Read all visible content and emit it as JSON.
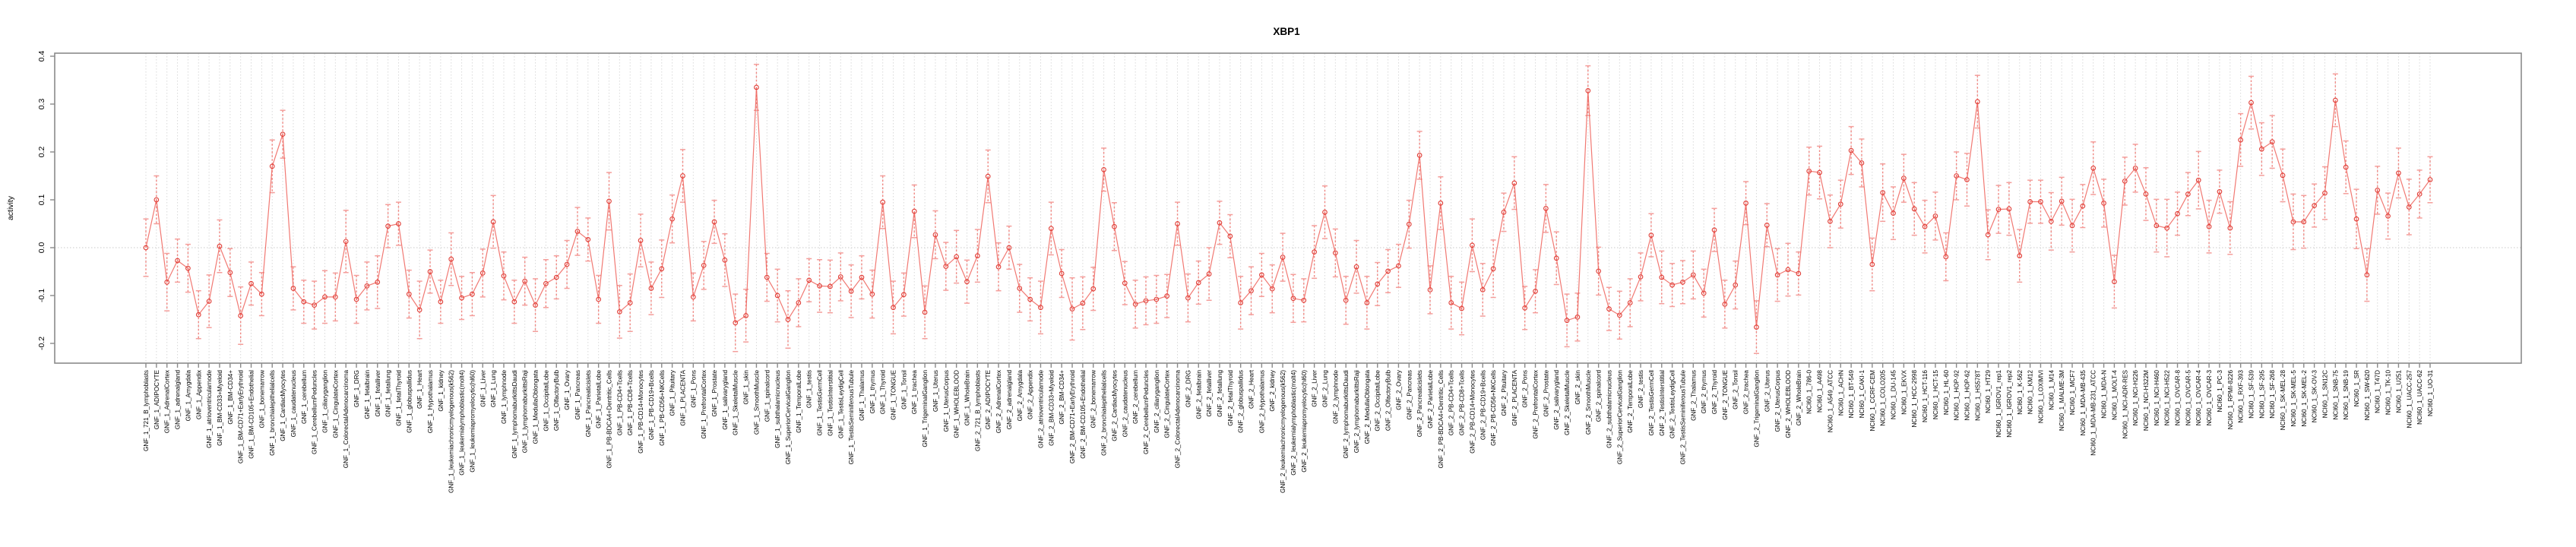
{
  "chart_data": {
    "type": "line",
    "title": "XBP1",
    "ylabel": "activity",
    "xlabel": "",
    "legend": "none",
    "grid": "dotted vertical gridline per category; dotted horizontal line at 0.0",
    "ylim": [
      -0.24,
      0.41
    ],
    "ytick_labels": [
      "0.4",
      "0.3",
      "0.2",
      "0.1",
      "0.0",
      "-0.1",
      "-0.2"
    ],
    "colors": {
      "series_line": "#ef615a",
      "marker_stroke": "#e03d36",
      "error_bar": "#f49e9b",
      "error_bar_line": "#f08883",
      "gridline": "#d9d9d9",
      "zero_line": "#c9c9c9",
      "axis_frame": "#8a8a8a"
    },
    "categories": [
      "GNF_1_721_B_lymphoblasts",
      "GNF_1_ADIPOCYTE",
      "GNF_1_AdrenalCortex",
      "GNF_1_adrenalgland",
      "GNF_1_Amygdala",
      "GNF_1_Appendix",
      "GNF_1_atrioventricularnode",
      "GNF_1_BM-CD33+Myeloid",
      "GNF_1_BM-CD34+",
      "GNF_1_BM-CD71+EarlyErythroid",
      "GNF_1_BM-CD105+Endothelial",
      "GNF_1_bonemarrow",
      "GNF_1_bronchialepithelialcells",
      "GNF_1_CardiacMyocytes",
      "GNF_1_caudatenucleus",
      "GNF_1_cerebellum",
      "GNF_1_CerebellumPeduncles",
      "GNF_1_ciliaryganglion",
      "GNF_1_CingulateCortex",
      "GNF_1_ColorectalAdenocarcinoma",
      "GNF_1_DRG",
      "GNF_1_fetalbrain",
      "GNF_1_fetalliver",
      "GNF_1_fetallung",
      "GNF_1_fetalThyroid",
      "GNF_1_globuspallidus",
      "GNF_1_Heart",
      "GNF_1_Hypothalamus",
      "GNF_1_kidney",
      "GNF_1_leukemiachronicmyelogenous(k562)",
      "GNF_1_leukemialymphoblastic(molt4)",
      "GNF_1_leukemiapromyelocytic(hl60)",
      "GNF_1_Liver",
      "GNF_1_Lung",
      "GNF_1_lymphnode",
      "GNF_1_lymphomaburkittsDaudi",
      "GNF_1_lymphomaburkittsRaji",
      "GNF_1_MedullaOblongata",
      "GNF_1_OccipitalLobe",
      "GNF_1_OlfactoryBulb",
      "GNF_1_Ovary",
      "GNF_1_Pancreas",
      "GNF_1_Pancreaticislets",
      "GNF_1_ParietalLobe",
      "GNF_1_PB-BDCA4+Dentritic_Cells",
      "GNF_1_PB-CD4+Tcells",
      "GNF_1_PB-CD8+Tcells",
      "GNF_1_PB-CD14+Monocytes",
      "GNF_1_PB-CD19+Bcells",
      "GNF_1_PB-CD56+NKCells",
      "GNF_1_Pituitary",
      "GNF_1_PLACENTA",
      "GNF_1_Pons",
      "GNF_1_PrefrontalCortex",
      "GNF_1_Prostate",
      "GNF_1_salivarygland",
      "GNF_1_SkeletalMuscle",
      "GNF_1_skin",
      "GNF_1_SmoothMuscle",
      "GNF_1_spinalcord",
      "GNF_1_subthalamicnucleus",
      "GNF_1_SuperiorCervicalGanglion",
      "GNF_1_TemporalLobe",
      "GNF_1_testis",
      "GNF_1_TestisGermCell",
      "GNF_1_TestisInterstitial",
      "GNF_1_TestisLeydigCell",
      "GNF_1_TestisSeminiferousTubule",
      "GNF_1_Thalamus",
      "GNF_1_thymus",
      "GNF_1_Thyroid",
      "GNF_1_TONGUE",
      "GNF_1_Tonsil",
      "GNF_1_trachea",
      "GNF_1_TrigeminalGanglion",
      "GNF_1_Uterus",
      "GNF_1_UterusCorpus",
      "GNF_1_WHOLEBLOOD",
      "GNF_1_WholeBrain",
      "GNF_2_721_B_lymphoblasts",
      "GNF_2_ADIPOCYTE",
      "GNF_2_AdrenalCortex",
      "GNF_2_adrenalgland",
      "GNF_2_Amygdala",
      "GNF_2_Appendix",
      "GNF_2_atrioventricularnode",
      "GNF_2_BM-CD33+Myeloid",
      "GNF_2_BM-CD34+",
      "GNF_2_BM-CD71+EarlyErythroid",
      "GNF_2_BM-CD105+Endothelial",
      "GNF_2_bonemarrow",
      "GNF_2_bronchialepithelialcells",
      "GNF_2_CardiacMyocytes",
      "GNF_2_caudatenucleus",
      "GNF_2_cerebellum",
      "GNF_2_CerebellumPeduncles",
      "GNF_2_ciliaryganglion",
      "GNF_2_CingulateCortex",
      "GNF_2_ColorectalAdenocarcinoma",
      "GNF_2_DRG",
      "GNF_2_fetalbrain",
      "GNF_2_fetalliver",
      "GNF_2_fetallung",
      "GNF_2_fetalThyroid",
      "GNF_2_globuspallidus",
      "GNF_2_Heart",
      "GNF_2_Hypothalamus",
      "GNF_2_kidney",
      "GNF_2_leukemiachronicmyelogenous(k562)",
      "GNF_2_leukemialymphoblastic(molt4)",
      "GNF_2_leukemiapromyelocytic(hl60)",
      "GNF_2_Liver",
      "GNF_2_Lung",
      "GNF_2_lymphnode",
      "GNF_2_lymphomaburkittsDaudi",
      "GNF_2_lymphomaburkittsRaji",
      "GNF_2_MedullaOblongata",
      "GNF_2_OccipitalLobe",
      "GNF_2_OlfactoryBulb",
      "GNF_2_Ovary",
      "GNF_2_Pancreas",
      "GNF_2_Pancreaticislets",
      "GNF_2_ParietalLobe",
      "GNF_2_PB-BDCA4+Dentritic_Cells",
      "GNF_2_PB-CD4+Tcells",
      "GNF_2_PB-CD8+Tcells",
      "GNF_2_PB-CD14+Monocytes",
      "GNF_2_PB-CD19+Bcells",
      "GNF_2_PB-CD56+NKCells",
      "GNF_2_Pituitary",
      "GNF_2_PLACENTA",
      "GNF_2_Pons",
      "GNF_2_PrefrontalCortex",
      "GNF_2_Prostate",
      "GNF_2_salivarygland",
      "GNF_2_SkeletalMuscle",
      "GNF_2_skin",
      "GNF_2_SmoothMuscle",
      "GNF_2_spinalcord",
      "GNF_2_subthalamicnucleus",
      "GNF_2_SuperiorCervicalGanglion",
      "GNF_2_TemporalLobe",
      "GNF_2_testis",
      "GNF_2_TestisGermCell",
      "GNF_2_TestisInterstitial",
      "GNF_2_TestisLeydigCell",
      "GNF_2_TestisSeminiferousTubule",
      "GNF_2_Thalamus",
      "GNF_2_thymus",
      "GNF_2_Thyroid",
      "GNF_2_TONGUE",
      "GNF_2_Tonsil",
      "GNF_2_trachea",
      "GNF_2_TrigeminalGanglion",
      "GNF_2_Uterus",
      "GNF_2_UterusCorpus",
      "GNF_2_WHOLEBLOOD",
      "GNF_2_WholeBrain",
      "NCI60_1_786-0",
      "NCI60_1_A498",
      "NCI60_1_A549_ATCC",
      "NCI60_1_ACHN",
      "NCI60_1_BT-549",
      "NCI60_1_CAKI-1",
      "NCI60_1_CCRF-CEM",
      "NCI60_1_COLO205",
      "NCI60_1_DU-145",
      "NCI60_1_EKVX",
      "NCI60_1_HCC-2998",
      "NCI60_1_HCT-116",
      "NCI60_1_HCT-15",
      "NCI60_1_HL-60",
      "NCI60_1_HOP-92",
      "NCI60_1_HOP-62",
      "NCI60_1_HS578T",
      "NCI60_1_HT29",
      "NCI60_1_IGROV1_rep1",
      "NCI60_1_IGROV1_rep2",
      "NCI60_1_K-562",
      "NCI60_1_KM12",
      "NCI60_1_LOXIMVI",
      "NCI60_1_M14",
      "NCI60_1_MALME-3M",
      "NCI60_1_MCF7",
      "NCI60_1_MDA-MB-435",
      "NCI60_1_MDA-MB-231_ATCC",
      "NCI60_1_MDA-N",
      "NCI60_1_MOLT-4",
      "NCI60_1_NCI-ADR-RES",
      "NCI60_1_NCI-H226",
      "NCI60_1_NCI-H322M",
      "NCI60_1_NCI-H460",
      "NCI60_1_NCI-H522",
      "NCI60_1_OVCAR-8",
      "NCI60_1_OVCAR-5",
      "NCI60_1_OVCAR-4",
      "NCI60_1_OVCAR-3",
      "NCI60_1_PC-3",
      "NCI60_1_RPMI-8226",
      "NCI60_1_RXF-393",
      "NCI60_1_SF-539",
      "NCI60_1_SF-295",
      "NCI60_1_SF-268",
      "NCI60_1_SK-MEL-28",
      "NCI60_1_SK-MEL-5",
      "NCI60_1_SK-MEL-2",
      "NCI60_1_SK-OV-3",
      "NCI60_1_SN12C",
      "NCI60_1_SNB-75",
      "NCI60_1_SNB-19",
      "NCI60_1_SR",
      "NCI60_1_SW-620",
      "NCI60_1_T47D",
      "NCI60_1_TK-10",
      "NCI60_1_U251",
      "NCI60_1_UACC-257",
      "NCI60_1_UACC-62",
      "NCI60_1_UO-31"
    ],
    "series": [
      {
        "name": "activity",
        "values": [
          0.0,
          0.1,
          -0.072,
          -0.027,
          -0.043,
          -0.14,
          -0.112,
          0.003,
          -0.052,
          -0.142,
          -0.075,
          -0.097,
          0.17,
          0.237,
          -0.085,
          -0.113,
          -0.12,
          -0.103,
          -0.103,
          0.013,
          -0.108,
          -0.08,
          -0.072,
          0.045,
          0.05,
          -0.097,
          -0.13,
          -0.05,
          -0.113,
          -0.024,
          -0.105,
          -0.097,
          -0.053,
          0.054,
          -0.059,
          -0.113,
          -0.07,
          -0.12,
          -0.075,
          -0.062,
          -0.035,
          0.034,
          0.017,
          -0.108,
          0.097,
          -0.134,
          -0.115,
          0.015,
          -0.085,
          -0.044,
          0.06,
          0.15,
          -0.103,
          -0.037,
          0.054,
          -0.026,
          -0.157,
          -0.142,
          0.335,
          -0.062,
          -0.1,
          -0.15,
          -0.115,
          -0.068,
          -0.08,
          -0.081,
          -0.061,
          -0.091,
          -0.062,
          -0.097,
          0.095,
          -0.125,
          -0.098,
          0.076,
          -0.135,
          0.027,
          -0.039,
          -0.019,
          -0.071,
          -0.017,
          0.149,
          -0.04,
          0.0,
          -0.085,
          -0.108,
          -0.125,
          0.04,
          -0.054,
          -0.128,
          -0.116,
          -0.086,
          0.163,
          0.044,
          -0.074,
          -0.118,
          -0.111,
          -0.108,
          -0.101,
          0.05,
          -0.105,
          -0.073,
          -0.055,
          0.052,
          0.024,
          -0.115,
          -0.09,
          -0.057,
          -0.086,
          -0.02,
          -0.106,
          -0.11,
          -0.009,
          0.074,
          -0.011,
          -0.11,
          -0.04,
          -0.115,
          -0.076,
          -0.049,
          -0.038,
          0.049,
          0.193,
          -0.088,
          0.093,
          -0.115,
          -0.127,
          0.005,
          -0.088,
          -0.044,
          0.074,
          0.135,
          -0.126,
          -0.091,
          0.082,
          -0.022,
          -0.152,
          -0.145,
          0.328,
          -0.049,
          -0.128,
          -0.141,
          -0.115,
          -0.061,
          0.026,
          -0.062,
          -0.078,
          -0.072,
          -0.057,
          -0.095,
          0.037,
          -0.118,
          -0.078,
          0.093,
          -0.166,
          0.047,
          -0.057,
          -0.046,
          -0.054,
          0.16,
          0.157,
          0.055,
          0.091,
          0.203,
          0.177,
          -0.035,
          0.115,
          0.072,
          0.145,
          0.081,
          0.044,
          0.066,
          -0.019,
          0.15,
          0.142,
          0.305,
          0.027,
          0.08,
          0.081,
          -0.017,
          0.096,
          0.096,
          0.055,
          0.097,
          0.046,
          0.087,
          0.166,
          0.093,
          -0.071,
          0.139,
          0.166,
          0.112,
          0.046,
          0.041,
          0.071,
          0.112,
          0.141,
          0.044,
          0.117,
          0.041,
          0.225,
          0.303,
          0.206,
          0.221,
          0.151,
          0.054,
          0.054,
          0.088,
          0.114,
          0.308,
          0.168,
          0.06,
          -0.057,
          0.12,
          0.066,
          0.156,
          0.085,
          0.112,
          0.142
        ],
        "errors": [
          0.06,
          0.05,
          0.06,
          0.045,
          0.05,
          0.05,
          0.055,
          0.055,
          0.05,
          0.06,
          0.045,
          0.045,
          0.055,
          0.05,
          0.045,
          0.045,
          0.05,
          0.055,
          0.05,
          0.065,
          0.05,
          0.05,
          0.055,
          0.045,
          0.045,
          0.05,
          0.06,
          0.045,
          0.045,
          0.055,
          0.045,
          0.045,
          0.05,
          0.055,
          0.05,
          0.045,
          0.05,
          0.055,
          0.05,
          0.045,
          0.05,
          0.05,
          0.045,
          0.05,
          0.06,
          0.055,
          0.06,
          0.055,
          0.055,
          0.06,
          0.05,
          0.055,
          0.05,
          0.05,
          0.045,
          0.055,
          0.06,
          0.055,
          0.048,
          0.05,
          0.055,
          0.06,
          0.05,
          0.045,
          0.055,
          0.055,
          0.05,
          0.055,
          0.045,
          0.05,
          0.055,
          0.055,
          0.045,
          0.055,
          0.055,
          0.05,
          0.05,
          0.055,
          0.045,
          0.055,
          0.055,
          0.05,
          0.045,
          0.05,
          0.045,
          0.055,
          0.055,
          0.05,
          0.065,
          0.055,
          0.045,
          0.045,
          0.05,
          0.045,
          0.05,
          0.05,
          0.05,
          0.045,
          0.045,
          0.05,
          0.045,
          0.055,
          0.045,
          0.045,
          0.055,
          0.05,
          0.045,
          0.05,
          0.05,
          0.05,
          0.045,
          0.055,
          0.055,
          0.05,
          0.05,
          0.055,
          0.055,
          0.045,
          0.045,
          0.045,
          0.05,
          0.05,
          0.05,
          0.055,
          0.055,
          0.055,
          0.055,
          0.055,
          0.06,
          0.04,
          0.055,
          0.045,
          0.045,
          0.05,
          0.055,
          0.055,
          0.05,
          0.052,
          0.05,
          0.045,
          0.05,
          0.05,
          0.05,
          0.045,
          0.055,
          0.045,
          0.045,
          0.05,
          0.05,
          0.045,
          0.05,
          0.05,
          0.045,
          0.055,
          0.045,
          0.055,
          0.055,
          0.045,
          0.05,
          0.055,
          0.055,
          0.05,
          0.05,
          0.05,
          0.055,
          0.06,
          0.055,
          0.05,
          0.055,
          0.055,
          0.05,
          0.05,
          0.05,
          0.055,
          0.055,
          0.052,
          0.05,
          0.055,
          0.055,
          0.045,
          0.045,
          0.06,
          0.05,
          0.055,
          0.045,
          0.055,
          0.05,
          0.055,
          0.05,
          0.05,
          0.055,
          0.055,
          0.06,
          0.045,
          0.045,
          0.06,
          0.055,
          0.045,
          0.055,
          0.055,
          0.055,
          0.055,
          0.055,
          0.055,
          0.058,
          0.055,
          0.045,
          0.055,
          0.055,
          0.055,
          0.062,
          0.055,
          0.05,
          0.048,
          0.052,
          0.058,
          0.05,
          0.048
        ]
      }
    ]
  }
}
